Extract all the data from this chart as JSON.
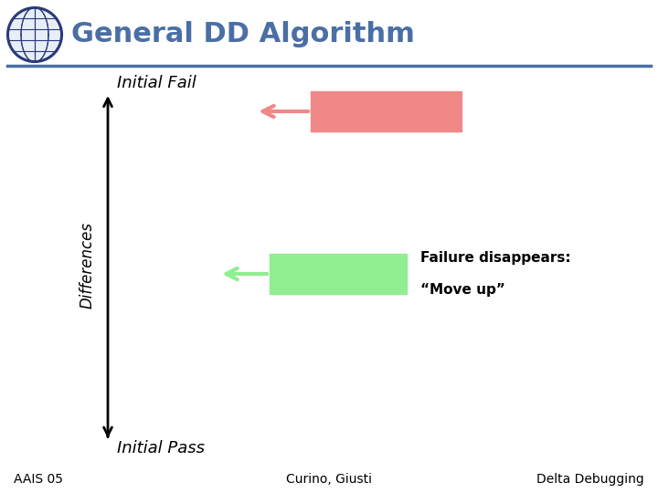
{
  "title": "General DD Algorithm",
  "title_color": "#4a6fa5",
  "title_fontsize": 22,
  "bg_color": "#ffffff",
  "header_line_color": "#4a6fa5",
  "axis_label": "Differences",
  "initial_fail_label": "Initial Fail",
  "initial_pass_label": "Initial Pass",
  "failure_label_line1": "Failure disappears:",
  "failure_label_line2": "“Move up”",
  "red_box_color": "#f08888",
  "green_box_color": "#90ee90",
  "footer_left": "AAIS 05",
  "footer_center": "Curino, Giusti",
  "footer_right": "Delta Debugging",
  "footer_fontsize": 10
}
